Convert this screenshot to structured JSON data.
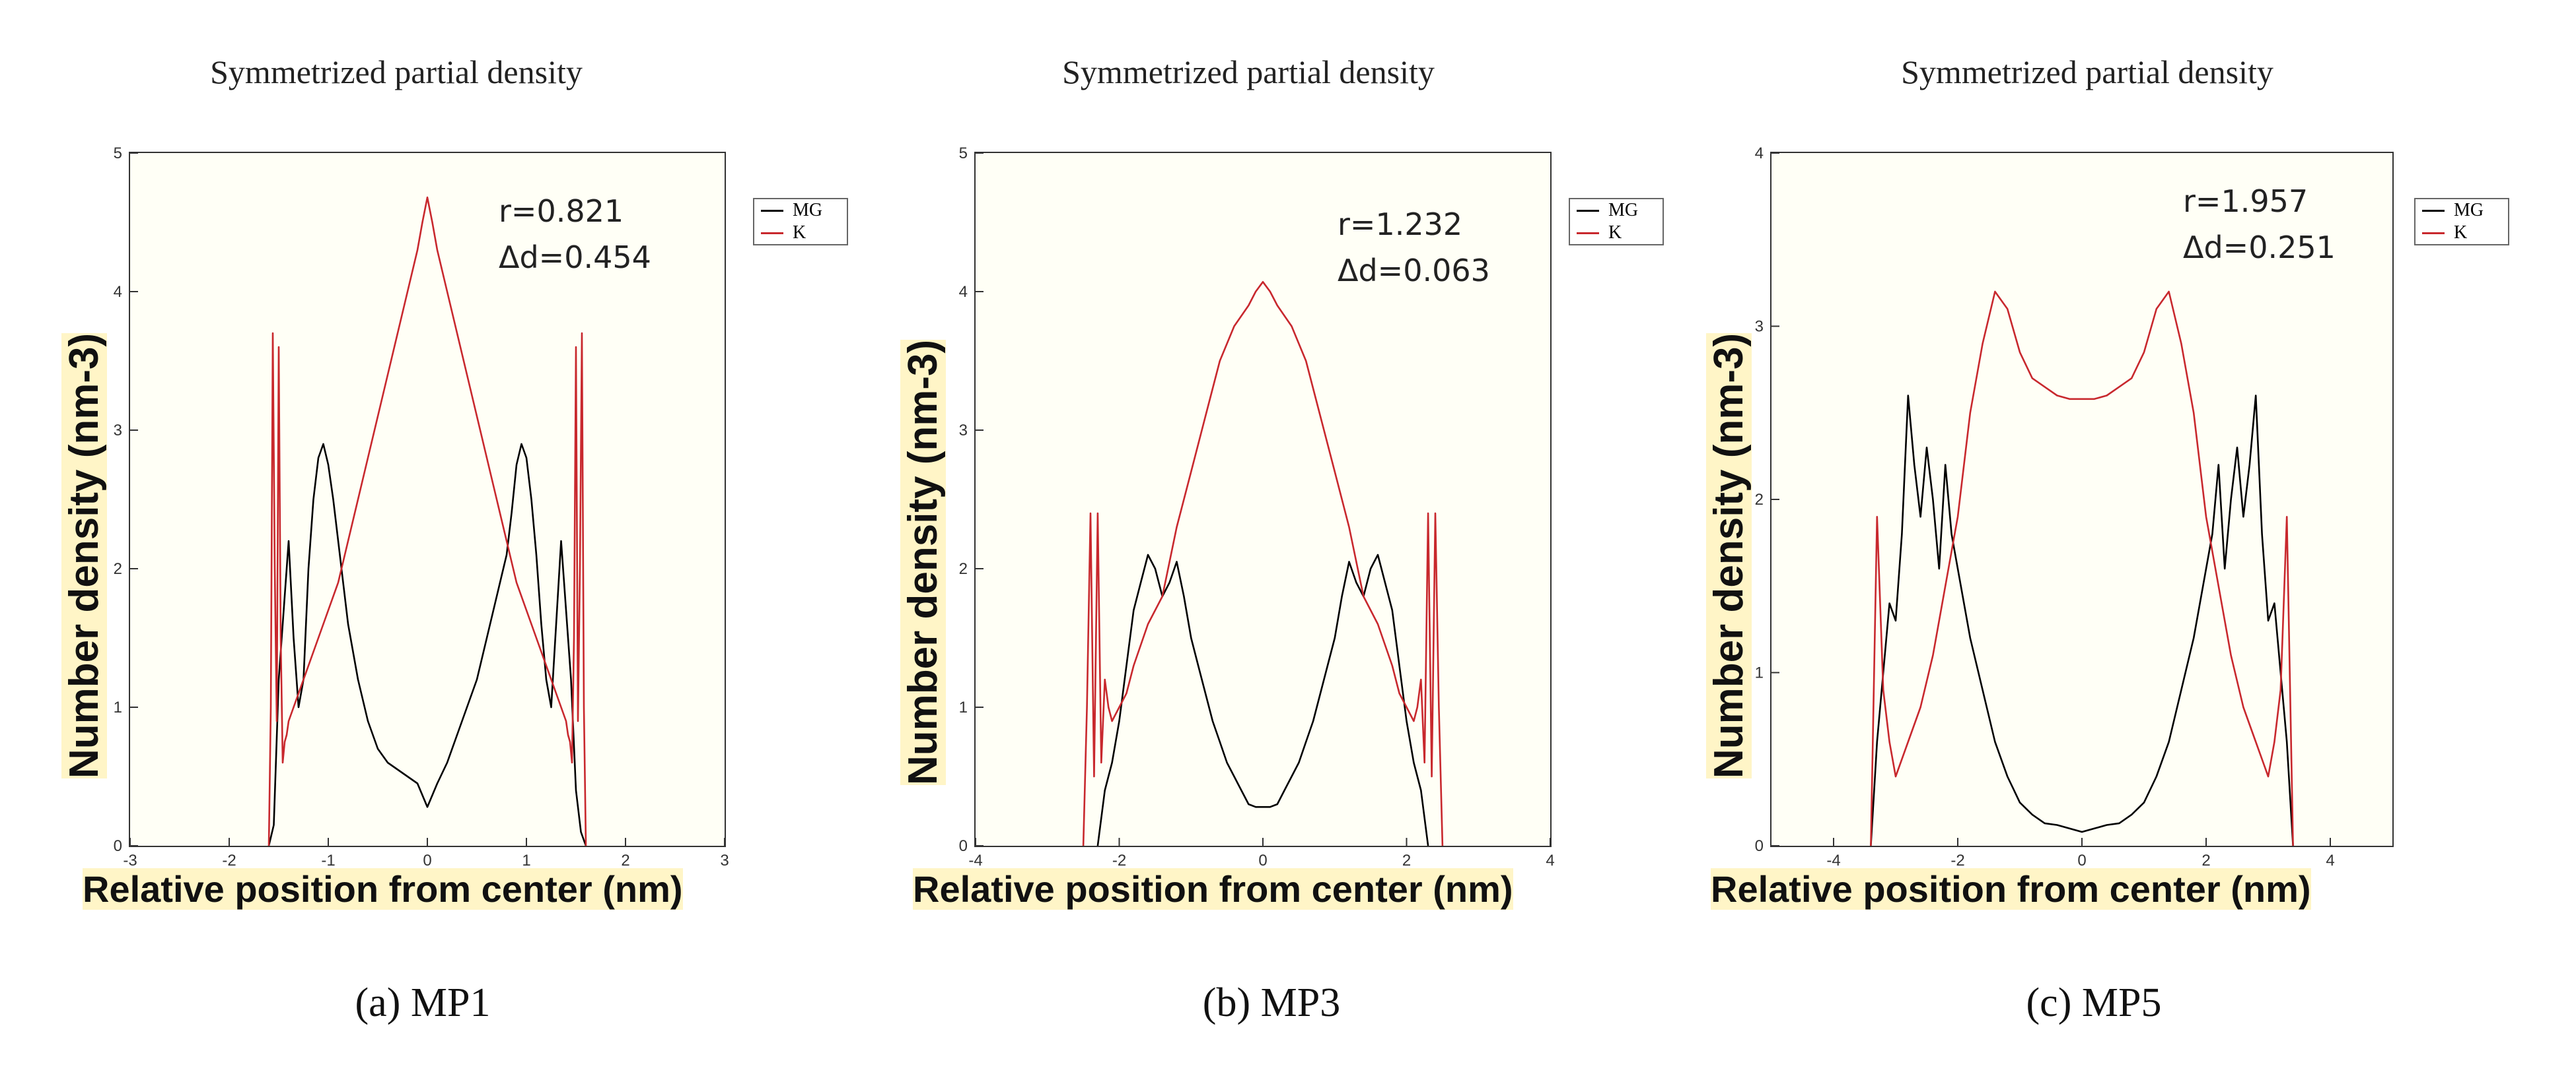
{
  "colors": {
    "MG": "#000000",
    "K": "#c8282d"
  },
  "chart_data": [
    {
      "type": "line",
      "title": "Symmetrized partial density",
      "xlabel": "Relative position from center (nm)",
      "ylabel": "Number density (nm-3)",
      "xlim": [
        -3,
        3
      ],
      "ylim": [
        0,
        5
      ],
      "xticks": [
        "-3",
        "-2",
        "-1",
        "0",
        "1",
        "2",
        "3"
      ],
      "yticks": [
        "0",
        "1",
        "2",
        "3",
        "4",
        "5"
      ],
      "legend": [
        "MG",
        "K"
      ],
      "annotation": [
        "r=0.821",
        "Δd=0.454"
      ],
      "caption": "(a) MP1",
      "series": [
        {
          "name": "MG",
          "x": [
            -1.6,
            -1.55,
            -1.5,
            -1.45,
            -1.4,
            -1.35,
            -1.3,
            -1.25,
            -1.2,
            -1.15,
            -1.1,
            -1.05,
            -1.0,
            -0.95,
            -0.9,
            -0.85,
            -0.8,
            -0.7,
            -0.6,
            -0.5,
            -0.4,
            -0.3,
            -0.2,
            -0.1,
            0.0,
            0.1,
            0.2,
            0.3,
            0.4,
            0.5,
            0.6,
            0.7,
            0.8,
            0.85,
            0.9,
            0.95,
            1.0,
            1.05,
            1.1,
            1.15,
            1.2,
            1.25,
            1.3,
            1.35,
            1.4,
            1.45,
            1.5,
            1.55,
            1.6
          ],
          "y": [
            0.0,
            0.15,
            1.2,
            1.7,
            2.2,
            1.5,
            1.0,
            1.2,
            2.0,
            2.5,
            2.8,
            2.9,
            2.75,
            2.5,
            2.2,
            1.9,
            1.6,
            1.2,
            0.9,
            0.7,
            0.6,
            0.55,
            0.5,
            0.45,
            0.28,
            0.45,
            0.6,
            0.8,
            1.0,
            1.2,
            1.5,
            1.8,
            2.1,
            2.4,
            2.75,
            2.9,
            2.8,
            2.5,
            2.1,
            1.6,
            1.2,
            1.0,
            1.6,
            2.2,
            1.7,
            1.2,
            0.4,
            0.1,
            0.0
          ]
        },
        {
          "name": "K",
          "x": [
            -1.6,
            -1.58,
            -1.56,
            -1.54,
            -1.52,
            -1.5,
            -1.48,
            -1.46,
            -1.44,
            -1.42,
            -1.4,
            -1.3,
            -1.2,
            -1.1,
            -1.0,
            -0.9,
            -0.8,
            -0.7,
            -0.6,
            -0.5,
            -0.4,
            -0.3,
            -0.2,
            -0.1,
            -0.05,
            0.0,
            0.05,
            0.1,
            0.2,
            0.3,
            0.4,
            0.5,
            0.6,
            0.7,
            0.8,
            0.9,
            1.0,
            1.1,
            1.2,
            1.3,
            1.4,
            1.42,
            1.44,
            1.46,
            1.48,
            1.5,
            1.52,
            1.54,
            1.56,
            1.58,
            1.6
          ],
          "y": [
            0.0,
            1.0,
            3.7,
            2.0,
            0.9,
            3.6,
            1.5,
            0.6,
            0.75,
            0.8,
            0.9,
            1.1,
            1.3,
            1.5,
            1.7,
            1.9,
            2.2,
            2.5,
            2.8,
            3.1,
            3.4,
            3.7,
            4.0,
            4.3,
            4.5,
            4.68,
            4.5,
            4.3,
            4.0,
            3.7,
            3.4,
            3.1,
            2.8,
            2.5,
            2.2,
            1.9,
            1.7,
            1.5,
            1.3,
            1.1,
            0.9,
            0.8,
            0.75,
            0.6,
            1.5,
            3.6,
            0.9,
            2.0,
            3.7,
            1.0,
            0.0
          ]
        }
      ]
    },
    {
      "type": "line",
      "title": "Symmetrized partial density",
      "xlabel": "Relative position from center (nm)",
      "ylabel": "Number density (nm-3)",
      "xlim": [
        -4,
        4
      ],
      "ylim": [
        0,
        5
      ],
      "xticks": [
        "-4",
        "-2",
        "0",
        "2",
        "4"
      ],
      "yticks": [
        "0",
        "1",
        "2",
        "3",
        "4",
        "5"
      ],
      "legend": [
        "MG",
        "K"
      ],
      "annotation": [
        "r=1.232",
        "Δd=0.063"
      ],
      "caption": "(b) MP3",
      "series": [
        {
          "name": "MG",
          "x": [
            -2.3,
            -2.2,
            -2.1,
            -2.0,
            -1.9,
            -1.8,
            -1.7,
            -1.6,
            -1.5,
            -1.4,
            -1.3,
            -1.2,
            -1.1,
            -1.0,
            -0.9,
            -0.8,
            -0.7,
            -0.6,
            -0.5,
            -0.4,
            -0.3,
            -0.2,
            -0.1,
            0.0,
            0.1,
            0.2,
            0.3,
            0.4,
            0.5,
            0.6,
            0.7,
            0.8,
            0.9,
            1.0,
            1.1,
            1.2,
            1.3,
            1.4,
            1.5,
            1.6,
            1.7,
            1.8,
            1.9,
            2.0,
            2.1,
            2.2,
            2.3
          ],
          "y": [
            0.0,
            0.4,
            0.6,
            0.9,
            1.3,
            1.7,
            1.9,
            2.1,
            2.0,
            1.8,
            1.9,
            2.05,
            1.8,
            1.5,
            1.3,
            1.1,
            0.9,
            0.75,
            0.6,
            0.5,
            0.4,
            0.3,
            0.28,
            0.28,
            0.28,
            0.3,
            0.4,
            0.5,
            0.6,
            0.75,
            0.9,
            1.1,
            1.3,
            1.5,
            1.8,
            2.05,
            1.9,
            1.8,
            2.0,
            2.1,
            1.9,
            1.7,
            1.3,
            0.9,
            0.6,
            0.4,
            0.0
          ]
        },
        {
          "name": "K",
          "x": [
            -2.5,
            -2.45,
            -2.4,
            -2.35,
            -2.3,
            -2.25,
            -2.2,
            -2.15,
            -2.1,
            -2.0,
            -1.9,
            -1.8,
            -1.6,
            -1.4,
            -1.2,
            -1.0,
            -0.8,
            -0.6,
            -0.4,
            -0.2,
            -0.1,
            0.0,
            0.1,
            0.2,
            0.4,
            0.6,
            0.8,
            1.0,
            1.2,
            1.4,
            1.6,
            1.8,
            1.9,
            2.0,
            2.1,
            2.15,
            2.2,
            2.25,
            2.3,
            2.35,
            2.4,
            2.45,
            2.5
          ],
          "y": [
            0.0,
            1.0,
            2.4,
            0.5,
            2.4,
            0.6,
            1.2,
            1.0,
            0.9,
            1.0,
            1.1,
            1.3,
            1.6,
            1.8,
            2.3,
            2.7,
            3.1,
            3.5,
            3.75,
            3.9,
            4.0,
            4.07,
            4.0,
            3.9,
            3.75,
            3.5,
            3.1,
            2.7,
            2.3,
            1.8,
            1.6,
            1.3,
            1.1,
            1.0,
            0.9,
            1.0,
            1.2,
            0.6,
            2.4,
            0.5,
            2.4,
            1.0,
            0.0
          ]
        }
      ]
    },
    {
      "type": "line",
      "title": "Symmetrized partial density",
      "xlabel": "Relative position from center (nm)",
      "ylabel": "Number density (nm-3)",
      "xlim": [
        -5,
        5
      ],
      "ylim": [
        0,
        4
      ],
      "xticks": [
        "-4",
        "-2",
        "0",
        "2",
        "4"
      ],
      "yticks": [
        "0",
        "1",
        "2",
        "3",
        "4"
      ],
      "legend": [
        "MG",
        "K"
      ],
      "annotation": [
        "r=1.957",
        "Δd=0.251"
      ],
      "caption": "(c) MP5",
      "series": [
        {
          "name": "MG",
          "x": [
            -3.4,
            -3.3,
            -3.2,
            -3.1,
            -3.0,
            -2.9,
            -2.8,
            -2.7,
            -2.6,
            -2.5,
            -2.4,
            -2.3,
            -2.2,
            -2.1,
            -2.0,
            -1.8,
            -1.6,
            -1.4,
            -1.2,
            -1.0,
            -0.8,
            -0.6,
            -0.4,
            -0.2,
            0.0,
            0.2,
            0.4,
            0.6,
            0.8,
            1.0,
            1.2,
            1.4,
            1.6,
            1.8,
            2.0,
            2.1,
            2.2,
            2.3,
            2.4,
            2.5,
            2.6,
            2.7,
            2.8,
            2.9,
            3.0,
            3.1,
            3.2,
            3.3,
            3.4
          ],
          "y": [
            0.0,
            0.6,
            1.0,
            1.4,
            1.3,
            1.8,
            2.6,
            2.2,
            1.9,
            2.3,
            2.0,
            1.6,
            2.2,
            1.8,
            1.6,
            1.2,
            0.9,
            0.6,
            0.4,
            0.25,
            0.18,
            0.13,
            0.12,
            0.1,
            0.08,
            0.1,
            0.12,
            0.13,
            0.18,
            0.25,
            0.4,
            0.6,
            0.9,
            1.2,
            1.6,
            1.8,
            2.2,
            1.6,
            2.0,
            2.3,
            1.9,
            2.2,
            2.6,
            1.8,
            1.3,
            1.4,
            1.0,
            0.6,
            0.0
          ]
        },
        {
          "name": "K",
          "x": [
            -3.4,
            -3.3,
            -3.2,
            -3.1,
            -3.0,
            -2.8,
            -2.6,
            -2.4,
            -2.2,
            -2.0,
            -1.8,
            -1.6,
            -1.4,
            -1.2,
            -1.0,
            -0.8,
            -0.6,
            -0.4,
            -0.2,
            0.0,
            0.2,
            0.4,
            0.6,
            0.8,
            1.0,
            1.2,
            1.4,
            1.6,
            1.8,
            2.0,
            2.2,
            2.4,
            2.6,
            2.8,
            3.0,
            3.1,
            3.2,
            3.3,
            3.4
          ],
          "y": [
            0.0,
            1.9,
            0.9,
            0.6,
            0.4,
            0.6,
            0.8,
            1.1,
            1.5,
            1.9,
            2.5,
            2.9,
            3.2,
            3.1,
            2.85,
            2.7,
            2.65,
            2.6,
            2.58,
            2.58,
            2.58,
            2.6,
            2.65,
            2.7,
            2.85,
            3.1,
            3.2,
            2.9,
            2.5,
            1.9,
            1.5,
            1.1,
            0.8,
            0.6,
            0.4,
            0.6,
            0.9,
            1.9,
            0.0
          ]
        }
      ]
    }
  ]
}
